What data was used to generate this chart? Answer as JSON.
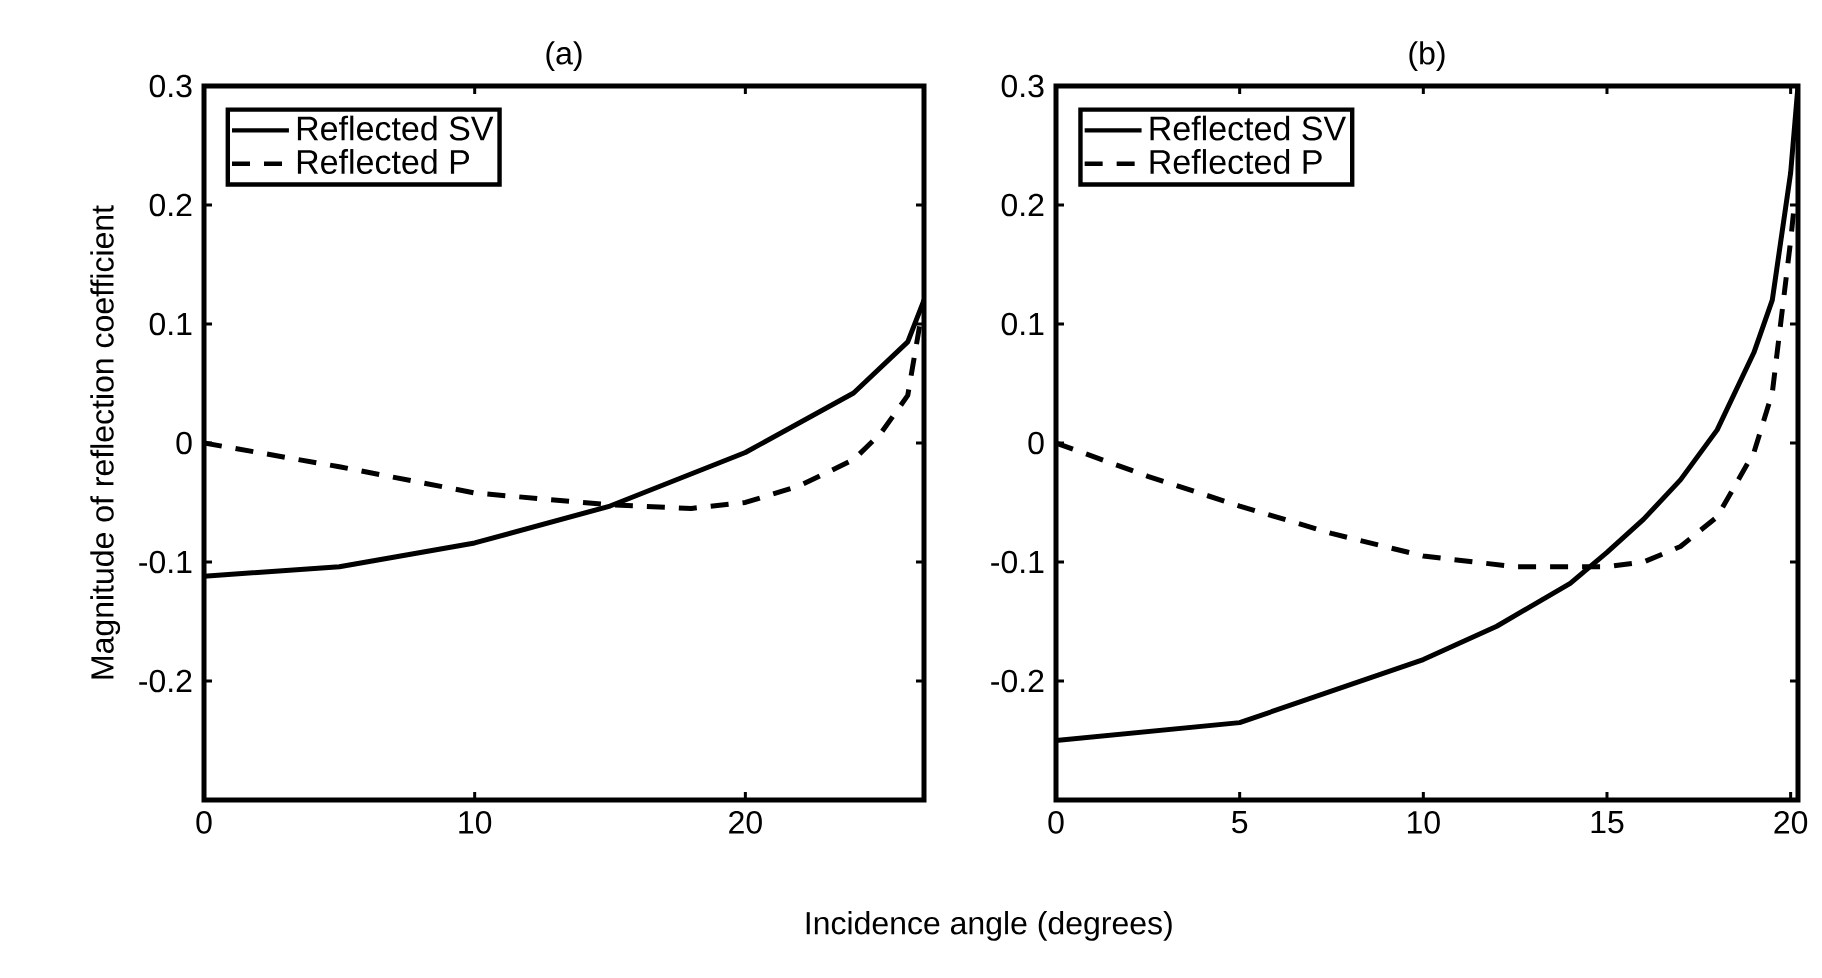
{
  "chart_data": [
    {
      "type": "line",
      "title": "(a)",
      "ylabel": "Magnitude of reflection coefficient",
      "xlabel": "Incidence angle (degrees)",
      "xlim": [
        0,
        26.6
      ],
      "ylim": [
        -0.3,
        0.3
      ],
      "xticks": [
        0,
        10,
        20
      ],
      "yticks": [
        -0.2,
        -0.1,
        0,
        0.1,
        0.2,
        0.3
      ],
      "legend": "top left",
      "grid": false,
      "series": [
        {
          "name": "Reflected SV",
          "color": "#000000",
          "line_style": "solid",
          "x": [
            0,
            5,
            10,
            15,
            20,
            24,
            26,
            26.6
          ],
          "values": [
            -0.112,
            -0.104,
            -0.084,
            -0.053,
            -0.008,
            0.042,
            0.085,
            0.12
          ]
        },
        {
          "name": "Reflected P",
          "color": "#000000",
          "line_style": "dashed",
          "x": [
            0,
            5,
            10,
            15,
            18,
            20,
            22,
            24,
            25,
            26,
            26.6
          ],
          "values": [
            0,
            -0.02,
            -0.042,
            -0.052,
            -0.055,
            -0.05,
            -0.036,
            -0.014,
            0.008,
            0.04,
            0.12
          ]
        }
      ]
    },
    {
      "type": "line",
      "title": "(b)",
      "xlim": [
        0,
        20.2
      ],
      "ylim": [
        -0.3,
        0.3
      ],
      "xticks": [
        0,
        5,
        10,
        15,
        20
      ],
      "yticks": [
        -0.2,
        -0.1,
        0,
        0.1,
        0.2,
        0.3
      ],
      "legend": "top left",
      "grid": false,
      "series": [
        {
          "name": "Reflected SV",
          "color": "#000000",
          "line_style": "solid",
          "x": [
            0,
            5,
            10,
            12,
            14,
            15,
            16,
            17,
            18,
            19,
            19.5,
            20,
            20.2
          ],
          "values": [
            -0.25,
            -0.235,
            -0.182,
            -0.154,
            -0.118,
            -0.092,
            -0.064,
            -0.031,
            0.011,
            0.076,
            0.12,
            0.227,
            0.3
          ]
        },
        {
          "name": "Reflected P",
          "color": "#000000",
          "line_style": "dashed",
          "x": [
            0,
            2.5,
            5,
            7.5,
            10,
            12.5,
            15,
            16,
            17,
            18,
            19,
            19.5,
            20,
            20.1
          ],
          "values": [
            0,
            -0.028,
            -0.053,
            -0.076,
            -0.095,
            -0.104,
            -0.104,
            -0.1,
            -0.087,
            -0.062,
            -0.008,
            0.042,
            0.17,
            0.2
          ]
        }
      ]
    }
  ]
}
